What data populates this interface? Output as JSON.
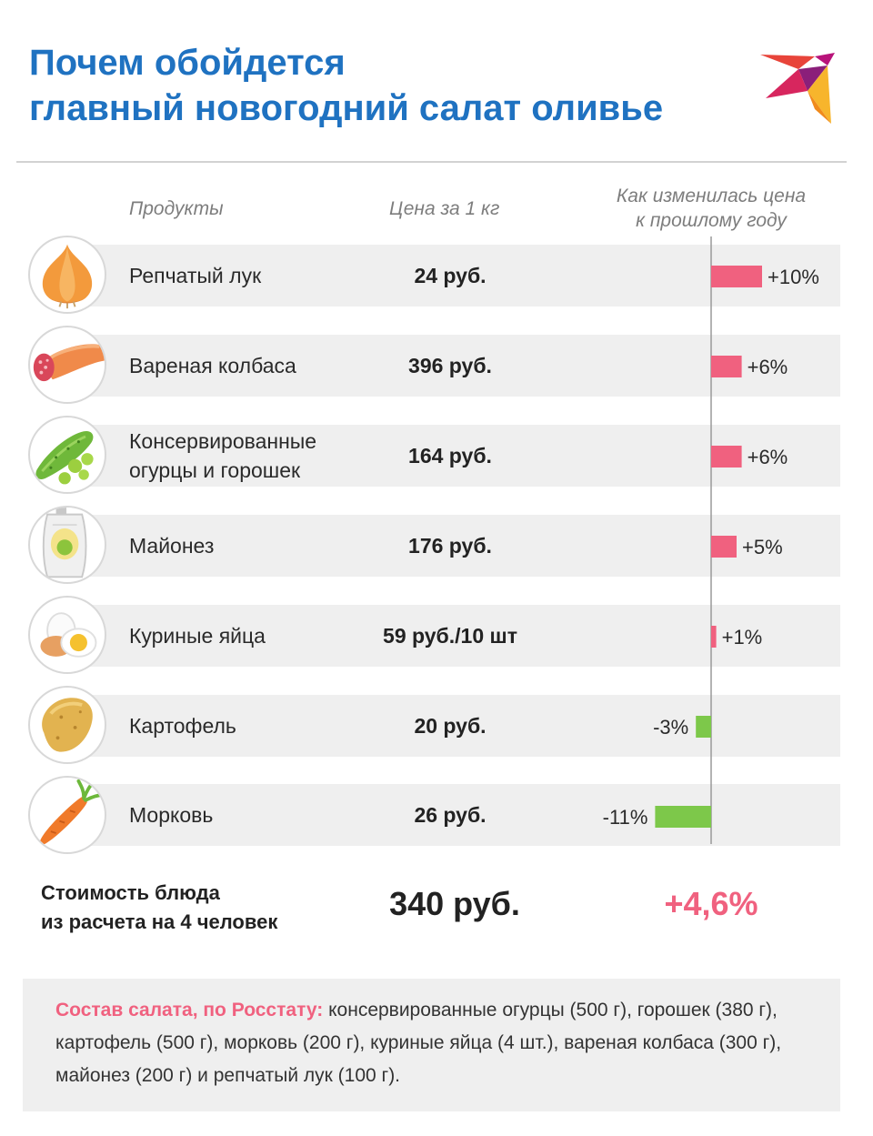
{
  "title": {
    "line1": "Почем обойдется",
    "line2": "главный новогодний салат оливье"
  },
  "headers": {
    "products": "Продукты",
    "price": "Цена за 1 кг",
    "change_line1": "Как изменилась цена",
    "change_line2": "к прошлому году"
  },
  "chart_data": {
    "type": "bar",
    "orientation": "horizontal",
    "categories": [
      "Репчатый лук",
      "Вареная колбаса",
      "Консервированные огурцы и горошек",
      "Майонез",
      "Куриные яйца",
      "Картофель",
      "Морковь"
    ],
    "prices": [
      "24 руб.",
      "396 руб.",
      "164 руб.",
      "176 руб.",
      "59 руб./10 шт",
      "20 руб.",
      "26 руб."
    ],
    "values": [
      10,
      6,
      6,
      5,
      1,
      -3,
      -11
    ],
    "labels": [
      "+10%",
      "+6%",
      "+6%",
      "+5%",
      "+1%",
      "-3%",
      "-11%"
    ],
    "unit": "%",
    "positive_color": "#f0617f",
    "negative_color": "#7dc84a"
  },
  "rows": [
    {
      "name_lines": [
        "Репчатый лук"
      ],
      "icon": "onion-icon"
    },
    {
      "name_lines": [
        "Вареная колбаса"
      ],
      "icon": "sausage-icon"
    },
    {
      "name_lines": [
        "Консервированные",
        "огурцы и горошек"
      ],
      "icon": "cucumber-peas-icon"
    },
    {
      "name_lines": [
        "Майонез"
      ],
      "icon": "mayonnaise-icon"
    },
    {
      "name_lines": [
        "Куриные яйца"
      ],
      "icon": "egg-icon"
    },
    {
      "name_lines": [
        "Картофель"
      ],
      "icon": "potato-icon"
    },
    {
      "name_lines": [
        "Морковь"
      ],
      "icon": "carrot-icon"
    }
  ],
  "total": {
    "label_line1": "Стоимость блюда",
    "label_line2": "из расчета на 4 человек",
    "price": "340 руб.",
    "change": "+4,6%"
  },
  "note": {
    "lead": "Состав салата, по Росстату:",
    "text": " консервированные огурцы (500 г), горошек (380 г), картофель (500 г), морковь (200 г), куриные яйца (4 шт.), вареная колбаса (300 г), майонез (200 г) и репчатый лук (100 г)."
  },
  "colors": {
    "title": "#1f72c1",
    "accent": "#f0617f",
    "band": "#efefef"
  }
}
